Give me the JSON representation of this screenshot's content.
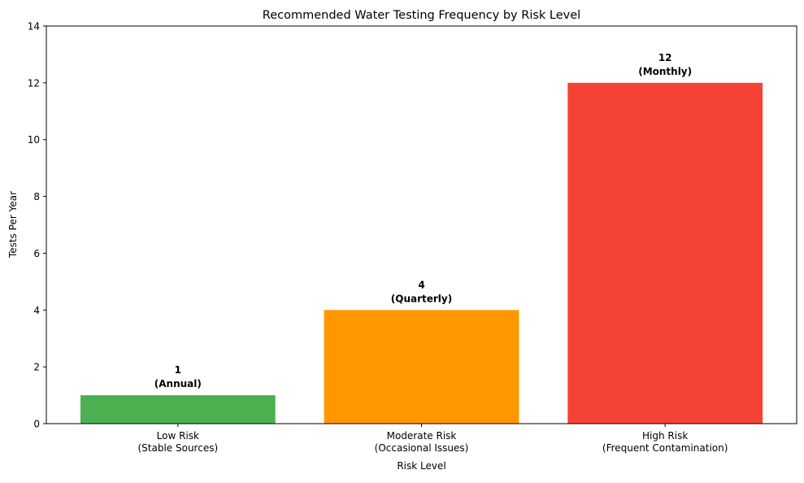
{
  "chart_data": {
    "type": "bar",
    "title": "Recommended Water Testing Frequency by Risk Level",
    "xlabel": "Risk Level",
    "ylabel": "Tests Per Year",
    "ylim": [
      0,
      14
    ],
    "yticks": [
      0,
      2,
      4,
      6,
      8,
      10,
      12,
      14
    ],
    "grid": false,
    "categories": [
      [
        "Low Risk",
        "(Stable Sources)"
      ],
      [
        "Moderate Risk",
        "(Occasional Issues)"
      ],
      [
        "High Risk",
        "(Frequent Contamination)"
      ]
    ],
    "values": [
      1,
      4,
      12
    ],
    "data_labels": [
      [
        "1",
        "(Annual)"
      ],
      [
        "4",
        "(Quarterly)"
      ],
      [
        "12",
        "(Monthly)"
      ]
    ],
    "colors": [
      "#4caf50",
      "#ff9800",
      "#f44336"
    ]
  }
}
